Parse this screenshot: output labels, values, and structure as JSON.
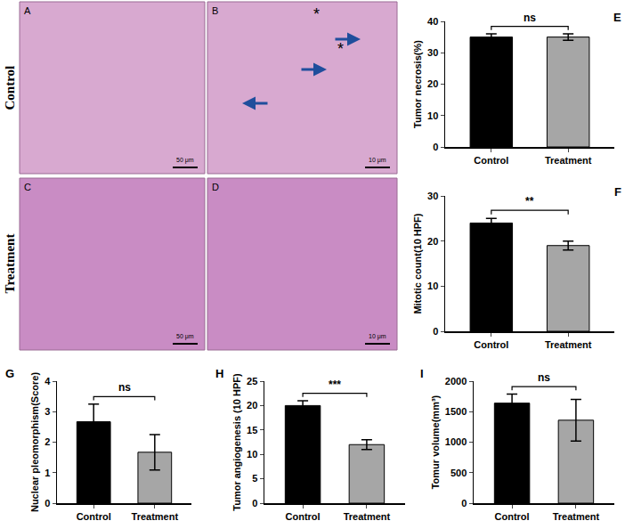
{
  "chart_data": [
    {
      "type": "bar",
      "panel": "E",
      "y_label": "Tumor necrosis(%)",
      "categories": [
        "Control",
        "Treatment"
      ],
      "values": [
        35,
        35
      ],
      "errors": [
        1,
        1
      ],
      "colors": [
        "#000000",
        "#a6a6a6"
      ],
      "ylim": [
        0,
        40
      ],
      "yticks": [
        0,
        10,
        20,
        30,
        40
      ],
      "grid": false,
      "significance": "ns"
    },
    {
      "type": "bar",
      "panel": "F",
      "y_label": "Mitotic count(10 HPF)",
      "categories": [
        "Control",
        "Treatment"
      ],
      "values": [
        24,
        19
      ],
      "errors": [
        1,
        1
      ],
      "colors": [
        "#000000",
        "#a6a6a6"
      ],
      "ylim": [
        0,
        30
      ],
      "yticks": [
        0,
        10,
        20,
        30
      ],
      "grid": false,
      "significance": "**"
    },
    {
      "type": "bar",
      "panel": "G",
      "y_label": "Nuclear pleomorphism(Score)",
      "categories": [
        "Control",
        "Treatment"
      ],
      "values": [
        2.67,
        1.67
      ],
      "errors": [
        0.58,
        0.58
      ],
      "colors": [
        "#000000",
        "#a6a6a6"
      ],
      "ylim": [
        0,
        4
      ],
      "yticks": [
        0,
        1,
        2,
        3,
        4
      ],
      "grid": false,
      "significance": "ns"
    },
    {
      "type": "bar",
      "panel": "H",
      "y_label": "Tumor angiogenesis (10 HPF)",
      "categories": [
        "Control",
        "Treatment"
      ],
      "values": [
        20,
        12
      ],
      "errors": [
        1,
        1
      ],
      "colors": [
        "#000000",
        "#a6a6a6"
      ],
      "ylim": [
        0,
        25
      ],
      "yticks": [
        0,
        5,
        10,
        15,
        20,
        25
      ],
      "grid": false,
      "significance": "***"
    },
    {
      "type": "bar",
      "panel": "I",
      "y_label": "Tomur volume(mm³)",
      "categories": [
        "Control",
        "Treatment"
      ],
      "values": [
        1640,
        1360
      ],
      "errors": [
        150,
        340
      ],
      "colors": [
        "#000000",
        "#a6a6a6"
      ],
      "ylim": [
        0,
        2000
      ],
      "yticks": [
        0,
        500,
        1000,
        1500,
        2000
      ],
      "grid": false,
      "significance": "ns"
    }
  ],
  "micrographs": {
    "row_labels": [
      "Control",
      "Treatment"
    ],
    "panels": [
      {
        "letter": "A",
        "scale_bar": "50 μm"
      },
      {
        "letter": "B",
        "scale_bar": "10 μm",
        "asterisks": [
          "*",
          "*"
        ]
      },
      {
        "letter": "C",
        "scale_bar": "50 μm"
      },
      {
        "letter": "D",
        "scale_bar": "10 μm"
      }
    ]
  }
}
